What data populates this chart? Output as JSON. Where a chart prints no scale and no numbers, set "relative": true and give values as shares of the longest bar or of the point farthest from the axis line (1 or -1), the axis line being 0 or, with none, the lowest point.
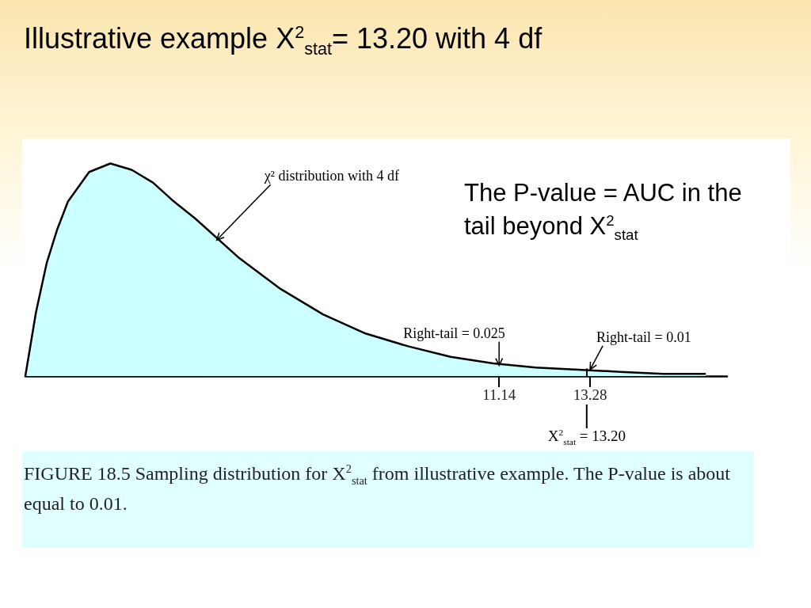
{
  "chart_data": {
    "type": "area",
    "title": "Illustrative example X$^{2}$$_{stat}$= 13.20 with 4 df",
    "relative": true,
    "color": "#ccffff",
    "marker": "none",
    "x": [
      0,
      0.25,
      0.5,
      0.75,
      1,
      1.5,
      2,
      2.5,
      3,
      3.5,
      4,
      5,
      6,
      7,
      8,
      9,
      10,
      11,
      12,
      13,
      14,
      15,
      16
    ],
    "values": [
      0,
      0.3,
      0.53,
      0.69,
      0.82,
      0.96,
      1,
      0.97,
      0.91,
      0.82,
      0.74,
      0.56,
      0.41,
      0.29,
      0.2,
      0.14,
      0.09,
      0.06,
      0.04,
      0.03,
      0.02,
      0.01,
      0.01
    ],
    "xlim": [
      0,
      16.5
    ],
    "xticks": [
      11.14,
      13.28
    ],
    "ref_lines": [
      {
        "axis": "x",
        "value": 13.2,
        "label": "X$^{2}$$_{stat}$ = 13.20"
      }
    ],
    "annotations": [
      "The P-value = AUC in the tail beyond X$^{2}$$_{stat}$",
      {
        "text": "χ² distribution with 4 df",
        "x": 4.5,
        "y": 0.64
      },
      {
        "text": "Right-tail = 0.025",
        "x": 11.14,
        "y": 0.05
      },
      {
        "text": "Right-tail = 0.01",
        "x": 13.28,
        "y": 0.03
      },
      "FIGURE 18.5 Sampling distribution for X$^{2}$$_{stat}$ from illustrative example. The P-value is about equal to 0.01."
    ]
  }
}
